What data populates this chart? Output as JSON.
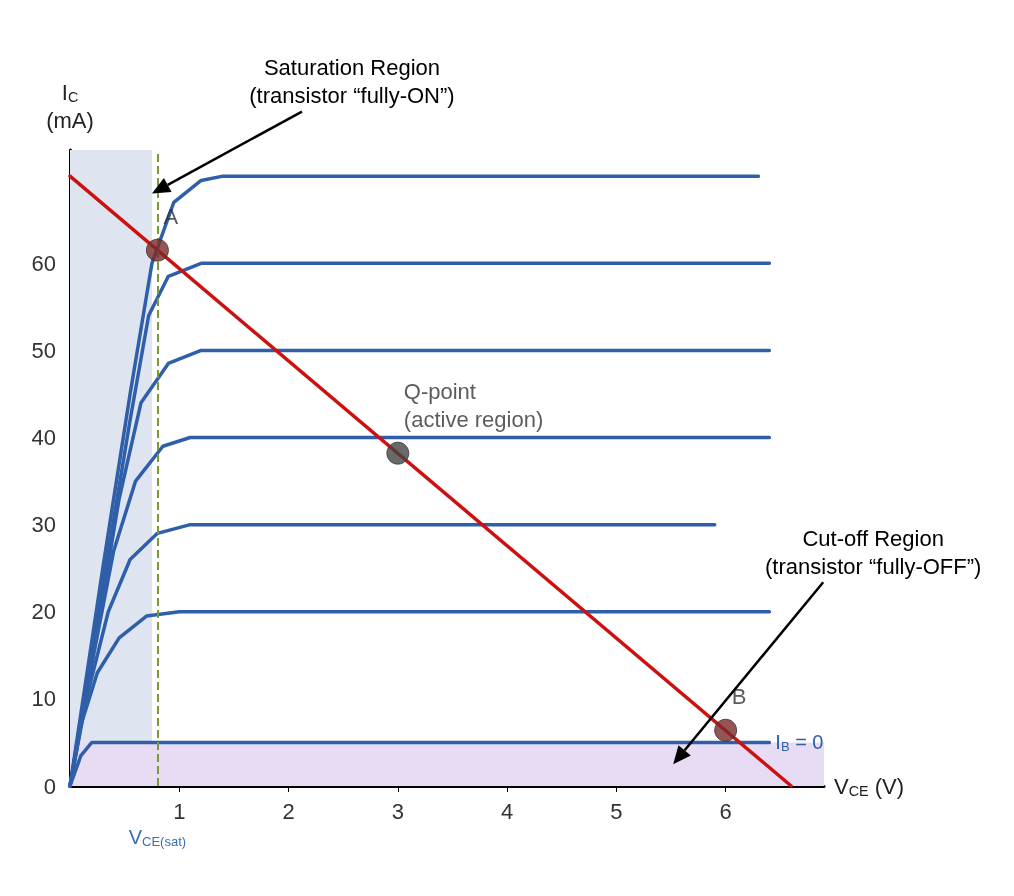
{
  "chart_data": {
    "type": "line",
    "xlabel": "V$_{CE}$ (V)",
    "ylabel": "I$_{C}$\n(mA)",
    "xlim": [
      0,
      6.9
    ],
    "ylim": [
      0,
      73
    ],
    "xticks": [
      1,
      2,
      3,
      4,
      5,
      6
    ],
    "yticks": [
      0,
      10,
      20,
      30,
      40,
      50,
      60
    ],
    "grid": false,
    "marker": "none",
    "line_style": "solid",
    "series": [
      {
        "color": "#2e5fa8",
        "x": [
          0,
          0.3,
          0.55,
          0.75,
          0.95,
          1.2,
          1.4,
          6.3
        ],
        "values": [
          0,
          25,
          45,
          60,
          67,
          69.5,
          70,
          70
        ]
      },
      {
        "color": "#2e5fa8",
        "x": [
          0,
          0.3,
          0.55,
          0.72,
          0.9,
          1.2,
          6.4
        ],
        "values": [
          0,
          23,
          42,
          54,
          58.5,
          60,
          60
        ]
      },
      {
        "color": "#2e5fa8",
        "x": [
          0,
          0.25,
          0.45,
          0.65,
          0.9,
          1.2,
          6.4
        ],
        "values": [
          0,
          18,
          33,
          44,
          48.5,
          50,
          50
        ]
      },
      {
        "color": "#2e5fa8",
        "x": [
          0,
          0.2,
          0.4,
          0.6,
          0.85,
          1.1,
          6.4
        ],
        "values": [
          0,
          14,
          27,
          35,
          39,
          40,
          40
        ]
      },
      {
        "color": "#2e5fa8",
        "x": [
          0,
          0.15,
          0.35,
          0.55,
          0.8,
          1.1,
          5.9
        ],
        "values": [
          0,
          10,
          20,
          26,
          29,
          30,
          30
        ]
      },
      {
        "color": "#2e5fa8",
        "x": [
          0,
          0.1,
          0.25,
          0.45,
          0.7,
          1.0,
          6.4
        ],
        "values": [
          0,
          7,
          13,
          17,
          19.5,
          20,
          20
        ]
      },
      {
        "name": "I$_{B}$ = 0",
        "color": "#2e5fa8",
        "x": [
          0,
          0.1,
          0.2,
          0.4,
          6.4
        ],
        "values": [
          0,
          3.5,
          5,
          5,
          5
        ]
      },
      {
        "color": "#cc1111",
        "x": [
          0,
          6.6
        ],
        "values": [
          70,
          0
        ]
      },
      {
        "type": "scatter",
        "marker": "circle",
        "x": [
          0.8,
          3,
          6
        ],
        "values": [
          61.5,
          38.2,
          6.4
        ],
        "colors": [
          "#7b2a2a",
          "#444444",
          "#7b2a2a"
        ],
        "value_labels": [
          "A",
          "Q-point\n(active region)",
          "B"
        ]
      }
    ],
    "ref_lines": [
      {
        "axis": "x",
        "value": 0.8,
        "label": "V$_{CE(sat)}$",
        "color": "#7a9a3a",
        "line_style": "dashed"
      }
    ],
    "bands": [
      {
        "axis": "x",
        "from": 0,
        "to": 0.75,
        "color": "#dfe5f0"
      },
      {
        "axis": "y",
        "from": 0,
        "to": 5,
        "color": "#e8dcf5"
      }
    ],
    "annotations": [
      "Saturation Region\n(transistor “fully-ON”)",
      "Cut-off Region\n(transistor “fully-OFF”)"
    ]
  }
}
